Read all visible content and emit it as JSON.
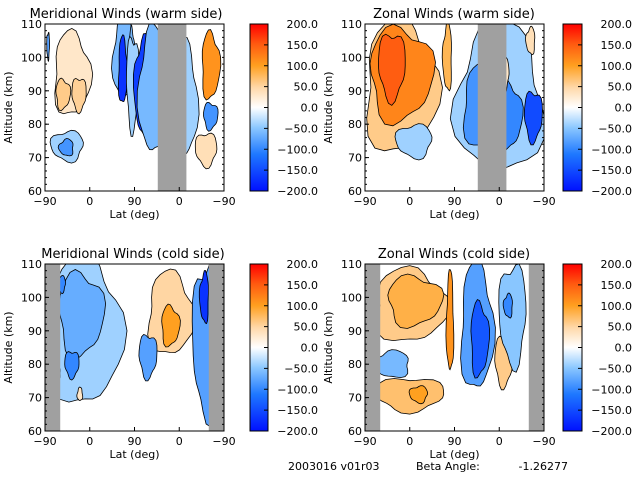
{
  "figure": {
    "footer": {
      "date_version": "2003016 v01r03",
      "beta_label": "Beta Angle:",
      "beta_value": "-1.26277"
    }
  },
  "chart_data": [
    {
      "type": "heatmap",
      "id": "merid-warm",
      "title": "Meridional Winds (warm side)",
      "xlabel": "Lat (deg)",
      "ylabel": "Altitude (km)",
      "x_tick_labels": [
        "-90",
        "0",
        "90",
        "0",
        "-90"
      ],
      "y_tick_labels": [
        "60",
        "70",
        "80",
        "90",
        "100",
        "110"
      ],
      "ylim": [
        60,
        110
      ],
      "colorbar": {
        "min": -200,
        "max": 200,
        "tick_labels": [
          "200.0",
          "150.0",
          "100.0",
          "50.0",
          "0.0",
          "-50.0",
          "-100.0",
          "-150.0",
          "-200.0"
        ]
      },
      "no_data_bands": [
        [
          0.63,
          0.79
        ]
      ],
      "features": [
        {
          "cx": 0.3,
          "cy": 0.7,
          "rx": 0.2,
          "ry": 0.25,
          "value": 30
        },
        {
          "cx": 0.2,
          "cy": 0.58,
          "rx": 0.08,
          "ry": 0.09,
          "value": 60
        },
        {
          "cx": 0.38,
          "cy": 0.58,
          "rx": 0.08,
          "ry": 0.1,
          "value": 55
        },
        {
          "cx": 0.25,
          "cy": 0.27,
          "rx": 0.18,
          "ry": 0.09,
          "value": -40
        },
        {
          "cx": 0.24,
          "cy": 0.26,
          "rx": 0.08,
          "ry": 0.05,
          "value": -90
        },
        {
          "cx": 0.88,
          "cy": 0.8,
          "rx": 0.12,
          "ry": 0.25,
          "value": -60
        },
        {
          "cx": 0.87,
          "cy": 0.72,
          "rx": 0.05,
          "ry": 0.2,
          "value": -170
        },
        {
          "cx": 0.97,
          "cy": 0.8,
          "rx": 0.03,
          "ry": 0.18,
          "value": -60
        },
        {
          "cx": 0.98,
          "cy": 0.65,
          "rx": 0.07,
          "ry": 0.28,
          "value": -40
        },
        {
          "cx": 0.035,
          "cy": 0.87,
          "rx": 0.015,
          "ry": 0.08,
          "value": -80
        }
      ],
      "features_right_half": [
        {
          "cx": 0.1,
          "cy": 0.62,
          "rx": 0.1,
          "ry": 0.3,
          "value": -160
        },
        {
          "cx": 0.2,
          "cy": 0.6,
          "rx": 0.15,
          "ry": 0.38,
          "value": -60
        },
        {
          "cx": 0.55,
          "cy": 0.55,
          "rx": 0.15,
          "ry": 0.35,
          "value": -40
        },
        {
          "cx": 0.85,
          "cy": 0.75,
          "rx": 0.1,
          "ry": 0.2,
          "value": 110
        },
        {
          "cx": 0.85,
          "cy": 0.45,
          "rx": 0.08,
          "ry": 0.08,
          "value": -90
        },
        {
          "cx": 0.8,
          "cy": 0.25,
          "rx": 0.12,
          "ry": 0.1,
          "value": 40
        }
      ]
    },
    {
      "type": "heatmap",
      "id": "zonal-warm",
      "title": "Zonal Winds (warm side)",
      "xlabel": "Lat (deg)",
      "ylabel": "Altitude (km)",
      "x_tick_labels": [
        "-90",
        "0",
        "90",
        "0",
        "-90"
      ],
      "y_tick_labels": [
        "60",
        "70",
        "80",
        "90",
        "100",
        "110"
      ],
      "ylim": [
        60,
        110
      ],
      "colorbar": {
        "min": -200,
        "max": 200,
        "tick_labels": [
          "200.0",
          "150.0",
          "100.0",
          "50.0",
          "0.0",
          "-50.0",
          "-100.0",
          "-150.0",
          "-200.0"
        ]
      },
      "no_data_bands": [
        [
          0.63,
          0.79
        ]
      ],
      "features": [
        {
          "cx": 0.4,
          "cy": 0.62,
          "rx": 0.4,
          "ry": 0.4,
          "value": 60
        },
        {
          "cx": 0.4,
          "cy": 0.7,
          "rx": 0.35,
          "ry": 0.28,
          "value": 120
        },
        {
          "cx": 0.3,
          "cy": 0.75,
          "rx": 0.15,
          "ry": 0.2,
          "value": 150
        },
        {
          "cx": 0.55,
          "cy": 0.3,
          "rx": 0.2,
          "ry": 0.1,
          "value": -40
        },
        {
          "cx": 0.92,
          "cy": 0.8,
          "rx": 0.05,
          "ry": 0.2,
          "value": 80
        }
      ],
      "features_right_half": [
        {
          "cx": 0.5,
          "cy": 0.55,
          "rx": 0.48,
          "ry": 0.45,
          "value": -40
        },
        {
          "cx": 0.3,
          "cy": 0.5,
          "rx": 0.2,
          "ry": 0.25,
          "value": -90
        },
        {
          "cx": 0.6,
          "cy": 0.45,
          "rx": 0.15,
          "ry": 0.2,
          "value": -100
        },
        {
          "cx": 0.88,
          "cy": 0.45,
          "rx": 0.1,
          "ry": 0.15,
          "value": -150
        },
        {
          "cx": 0.55,
          "cy": 0.7,
          "rx": 0.06,
          "ry": 0.1,
          "value": 30
        },
        {
          "cx": 0.85,
          "cy": 0.9,
          "rx": 0.05,
          "ry": 0.08,
          "value": 40
        }
      ]
    },
    {
      "type": "heatmap",
      "id": "merid-cold",
      "title": "Meridional Winds (cold side)",
      "xlabel": "Lat (deg)",
      "ylabel": "Altitude (km)",
      "x_tick_labels": [
        "-90",
        "0",
        "90",
        "0",
        "-90"
      ],
      "y_tick_labels": [
        "60",
        "70",
        "80",
        "90",
        "100",
        "110"
      ],
      "ylim": [
        60,
        110
      ],
      "colorbar": {
        "min": -200,
        "max": 200,
        "tick_labels": [
          "200.0",
          "150.0",
          "100.0",
          "50.0",
          "0.0",
          "-50.0",
          "-100.0",
          "-150.0",
          "-200.0"
        ]
      },
      "no_data_bands": [
        [
          0.0,
          0.085
        ],
        [
          0.915,
          1.0
        ]
      ],
      "features": [
        {
          "cx": 0.45,
          "cy": 0.6,
          "rx": 0.4,
          "ry": 0.45,
          "value": -40
        },
        {
          "cx": 0.4,
          "cy": 0.7,
          "rx": 0.25,
          "ry": 0.25,
          "value": -70
        },
        {
          "cx": 0.3,
          "cy": 0.4,
          "rx": 0.08,
          "ry": 0.08,
          "value": -100
        },
        {
          "cx": 0.18,
          "cy": 0.88,
          "rx": 0.05,
          "ry": 0.05,
          "value": -100
        },
        {
          "cx": 0.14,
          "cy": 0.35,
          "rx": 0.03,
          "ry": 0.04,
          "value": 30
        },
        {
          "cx": 0.39,
          "cy": 0.22,
          "rx": 0.03,
          "ry": 0.04,
          "value": 30
        }
      ],
      "features_right_half": [
        {
          "cx": 0.4,
          "cy": 0.7,
          "rx": 0.25,
          "ry": 0.25,
          "value": 50
        },
        {
          "cx": 0.4,
          "cy": 0.63,
          "rx": 0.1,
          "ry": 0.12,
          "value": 100
        },
        {
          "cx": 0.15,
          "cy": 0.45,
          "rx": 0.1,
          "ry": 0.13,
          "value": -80
        },
        {
          "cx": 0.8,
          "cy": 0.55,
          "rx": 0.15,
          "ry": 0.45,
          "value": -80
        },
        {
          "cx": 0.78,
          "cy": 0.8,
          "rx": 0.05,
          "ry": 0.15,
          "value": -170
        }
      ]
    },
    {
      "type": "heatmap",
      "id": "zonal-cold",
      "title": "Zonal Winds (cold side)",
      "xlabel": "Lat (deg)",
      "ylabel": "Altitude (km)",
      "x_tick_labels": [
        "-90",
        "0",
        "90",
        "0",
        "-90"
      ],
      "y_tick_labels": [
        "60",
        "70",
        "80",
        "90",
        "100",
        "110"
      ],
      "ylim": [
        60,
        110
      ],
      "colorbar": {
        "min": -200,
        "max": 200,
        "tick_labels": [
          "200.0",
          "150.0",
          "100.0",
          "50.0",
          "0.0",
          "-50.0",
          "-100.0",
          "-150.0",
          "-200.0"
        ]
      },
      "no_data_bands": [
        [
          0.0,
          0.085
        ],
        [
          0.915,
          1.0
        ]
      ],
      "features": [
        {
          "cx": 0.5,
          "cy": 0.75,
          "rx": 0.4,
          "ry": 0.22,
          "value": 60
        },
        {
          "cx": 0.55,
          "cy": 0.78,
          "rx": 0.3,
          "ry": 0.15,
          "value": 85
        },
        {
          "cx": 0.5,
          "cy": 0.22,
          "rx": 0.38,
          "ry": 0.1,
          "value": 70
        },
        {
          "cx": 0.6,
          "cy": 0.22,
          "rx": 0.1,
          "ry": 0.05,
          "value": 100
        },
        {
          "cx": 0.3,
          "cy": 0.4,
          "rx": 0.2,
          "ry": 0.08,
          "value": -60
        },
        {
          "cx": 0.95,
          "cy": 0.65,
          "rx": 0.04,
          "ry": 0.3,
          "value": 110
        }
      ],
      "features_right_half": [
        {
          "cx": 0.25,
          "cy": 0.62,
          "rx": 0.18,
          "ry": 0.38,
          "value": -80
        },
        {
          "cx": 0.28,
          "cy": 0.55,
          "rx": 0.1,
          "ry": 0.22,
          "value": -140
        },
        {
          "cx": 0.55,
          "cy": 0.42,
          "rx": 0.1,
          "ry": 0.15,
          "value": 60
        },
        {
          "cx": 0.65,
          "cy": 0.7,
          "rx": 0.15,
          "ry": 0.3,
          "value": -50
        },
        {
          "cx": 0.6,
          "cy": 0.75,
          "rx": 0.05,
          "ry": 0.07,
          "value": -100
        }
      ]
    }
  ]
}
